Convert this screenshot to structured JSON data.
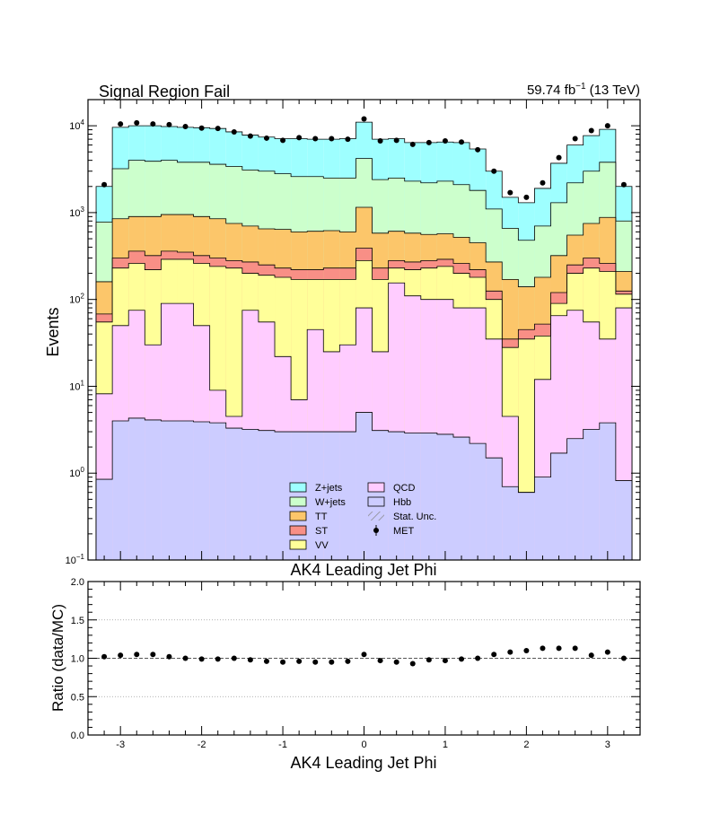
{
  "chart_data": [
    {
      "type": "area",
      "title": "Signal Region Fail",
      "lumi_label": "59.74 fb",
      "lumi_exp": "−1",
      "energy_label": "(13 TeV)",
      "xlabel": "AK4 Leading Jet Phi",
      "ylabel": "Events",
      "yscale": "log",
      "ylim": [
        0.1,
        20000
      ],
      "xlim": [
        -3.4,
        3.4
      ],
      "x_ticks": [
        "-3",
        "-2",
        "-1",
        "0",
        "1",
        "2",
        "3"
      ],
      "y_ticks": [
        {
          "base": "10",
          "exp": "4",
          "value": 10000
        },
        {
          "base": "10",
          "exp": "3",
          "value": 1000
        },
        {
          "base": "10",
          "exp": "2",
          "value": 100
        },
        {
          "base": "10",
          "exp": "1",
          "value": 10
        },
        {
          "base": "10",
          "exp": "0",
          "value": 1
        },
        {
          "base": "10",
          "exp": "−1",
          "value": 0.1
        }
      ],
      "bin_edges": [
        -3.3,
        -3.1,
        -2.9,
        -2.7,
        -2.5,
        -2.3,
        -2.1,
        -1.9,
        -1.7,
        -1.5,
        -1.3,
        -1.1,
        -0.9,
        -0.7,
        -0.5,
        -0.3,
        -0.1,
        0.1,
        0.3,
        0.5,
        0.7,
        0.9,
        1.1,
        1.3,
        1.5,
        1.7,
        1.9,
        2.1,
        2.3,
        2.5,
        2.7,
        2.9,
        3.1,
        3.3
      ],
      "stack_order": [
        "Hbb",
        "QCD",
        "VV",
        "ST",
        "TT",
        "W+jets",
        "Z+jets"
      ],
      "series": [
        {
          "name": "Z+jets",
          "color": "#9effff",
          "cumulative": true,
          "values": [
            2000,
            9600,
            10000,
            10000,
            9800,
            9600,
            9500,
            9300,
            8500,
            7800,
            7400,
            7100,
            7100,
            7000,
            7000,
            7100,
            11000,
            7000,
            7100,
            6400,
            6400,
            6500,
            6400,
            5400,
            3000,
            1500,
            1300,
            1900,
            3700,
            6000,
            7700,
            9100,
            2000
          ]
        },
        {
          "name": "W+jets",
          "color": "#ccffcc",
          "cumulative": true,
          "values": [
            780,
            3200,
            4000,
            3900,
            4000,
            3800,
            3800,
            3600,
            3400,
            3100,
            3000,
            2800,
            2600,
            2600,
            2500,
            2500,
            4200,
            2400,
            2500,
            2300,
            2200,
            2300,
            2100,
            1800,
            1100,
            660,
            480,
            700,
            1300,
            2200,
            3000,
            3800,
            800
          ]
        },
        {
          "name": "TT",
          "color": "#fcc66a",
          "cumulative": true,
          "values": [
            160,
            850,
            900,
            900,
            950,
            950,
            900,
            850,
            750,
            700,
            650,
            640,
            600,
            610,
            620,
            600,
            1150,
            580,
            610,
            580,
            560,
            570,
            520,
            450,
            270,
            170,
            140,
            180,
            320,
            550,
            750,
            880,
            210
          ]
        },
        {
          "name": "ST",
          "color": "#f88f86",
          "cumulative": true,
          "values": [
            68,
            300,
            360,
            320,
            360,
            350,
            320,
            300,
            280,
            270,
            250,
            230,
            220,
            220,
            230,
            230,
            390,
            230,
            280,
            270,
            280,
            290,
            260,
            220,
            125,
            35,
            45,
            52,
            120,
            250,
            300,
            260,
            125
          ]
        },
        {
          "name": "VV",
          "color": "#ffff99",
          "cumulative": true,
          "values": [
            55,
            230,
            260,
            220,
            290,
            290,
            260,
            240,
            230,
            200,
            190,
            180,
            170,
            170,
            170,
            170,
            280,
            170,
            230,
            220,
            230,
            240,
            200,
            180,
            100,
            28,
            35,
            38,
            90,
            200,
            230,
            210,
            115
          ]
        },
        {
          "name": "QCD",
          "color": "#ffccff",
          "cumulative": true,
          "values": [
            8.2,
            50,
            75,
            30,
            90,
            90,
            50,
            9,
            4.5,
            75,
            55,
            22,
            7,
            45,
            25,
            30,
            80,
            25,
            155,
            110,
            100,
            100,
            80,
            80,
            35,
            4.5,
            0.6,
            12,
            65,
            75,
            55,
            35,
            80
          ]
        },
        {
          "name": "Hbb",
          "color": "#ccccff",
          "cumulative": true,
          "values": [
            0.85,
            4.0,
            4.3,
            4.1,
            4.0,
            4.0,
            3.9,
            3.8,
            3.3,
            3.2,
            3.1,
            3.0,
            3.0,
            3.0,
            3.0,
            3.0,
            5.0,
            3.1,
            3.0,
            2.9,
            2.9,
            2.8,
            2.6,
            2.2,
            1.5,
            0.7,
            0.6,
            0.9,
            1.7,
            2.5,
            3.2,
            3.8,
            0.82
          ]
        },
        {
          "name": "Stat. Unc.",
          "color": "#888888"
        },
        {
          "name": "MET",
          "color": "#000000",
          "marker": "point",
          "x": [
            -3.2,
            -3.0,
            -2.8,
            -2.6,
            -2.4,
            -2.2,
            -2.0,
            -1.8,
            -1.6,
            -1.4,
            -1.2,
            -1.0,
            -0.8,
            -0.6,
            -0.4,
            -0.2,
            0.0,
            0.2,
            0.4,
            0.6,
            0.8,
            1.0,
            1.2,
            1.4,
            1.6,
            1.8,
            2.0,
            2.2,
            2.4,
            2.6,
            2.8,
            3.0,
            3.2
          ],
          "values": [
            2100,
            10500,
            10800,
            10500,
            10300,
            9800,
            9400,
            9300,
            8500,
            7600,
            7200,
            6800,
            7300,
            7100,
            7100,
            7000,
            12000,
            6700,
            6800,
            6100,
            6400,
            6700,
            6500,
            5300,
            3000,
            1700,
            1500,
            2200,
            4300,
            7100,
            8800,
            10000,
            2100
          ]
        }
      ],
      "legend": {
        "placement": "bottom-center",
        "items": [
          "Z+jets",
          "W+jets",
          "TT",
          "ST",
          "VV",
          "QCD",
          "Hbb",
          "Stat. Unc.",
          "MET"
        ]
      }
    },
    {
      "type": "scatter",
      "xlabel": "AK4 Leading Jet Phi",
      "ylabel": "Ratio (data/MC)",
      "ylim": [
        0.0,
        2.0
      ],
      "xlim": [
        -3.4,
        3.4
      ],
      "x_ticks": [
        "-3",
        "-2",
        "-1",
        "0",
        "1",
        "2",
        "3"
      ],
      "y_ticks": [
        "0.0",
        "0.5",
        "1.0",
        "1.5",
        "2.0"
      ],
      "reference_line": 1.0,
      "grid": "horizontal dotted",
      "x": [
        -3.2,
        -3.0,
        -2.8,
        -2.6,
        -2.4,
        -2.2,
        -2.0,
        -1.8,
        -1.6,
        -1.4,
        -1.2,
        -1.0,
        -0.8,
        -0.6,
        -0.4,
        -0.2,
        0.0,
        0.2,
        0.4,
        0.6,
        0.8,
        1.0,
        1.2,
        1.4,
        1.6,
        1.8,
        2.0,
        2.2,
        2.4,
        2.6,
        2.8,
        3.0,
        3.2
      ],
      "values": [
        1.02,
        1.04,
        1.05,
        1.05,
        1.02,
        1.0,
        0.99,
        0.99,
        1.0,
        0.98,
        0.96,
        0.95,
        0.96,
        0.95,
        0.95,
        0.96,
        1.05,
        0.97,
        0.95,
        0.93,
        0.98,
        0.97,
        0.99,
        1.0,
        1.05,
        1.08,
        1.1,
        1.13,
        1.13,
        1.13,
        1.04,
        1.08,
        1.0
      ]
    }
  ]
}
